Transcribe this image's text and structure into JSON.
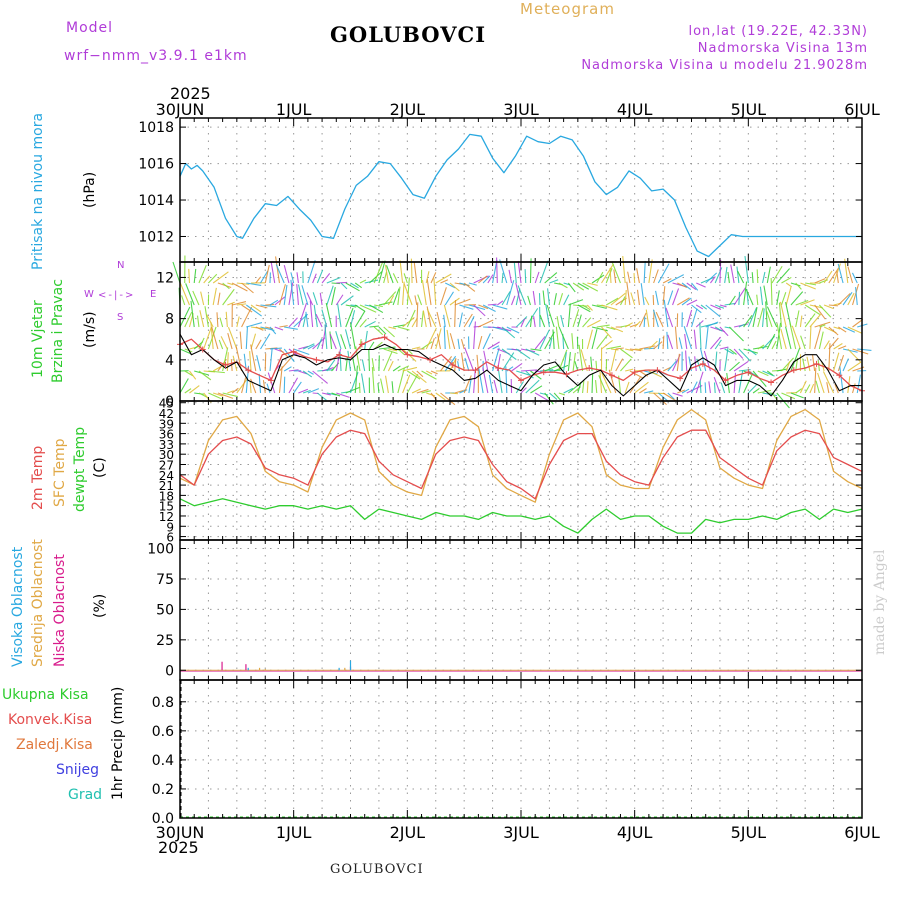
{
  "header": {
    "model_label": "Model",
    "model_name": "wrf−nmm_v3.9.1 e1km",
    "meteogram_label": "Meteogram",
    "station": "GOLUBOVCI",
    "lonlat": "lon,lat (19.22E, 42.33N)",
    "elevation": "Nadmorska Visina 13m",
    "model_elevation": "Nadmorska Visina u modelu 21.9028m"
  },
  "time_axis": {
    "year": "2025",
    "labels": [
      "30JUN",
      "1JUL",
      "2JUL",
      "3JUL",
      "4JUL",
      "5JUL",
      "6JUL"
    ]
  },
  "footer": {
    "station": "GOLUBOVCI",
    "watermark": "made by Angel"
  },
  "colors": {
    "pressure": "#29a8e0",
    "temp2m": "#e44d4d",
    "sfc_temp": "#e0a845",
    "dewpoint": "#2ecc2e",
    "wind_speed": "#e44d4d",
    "wind_gust": "#000000",
    "cloud_high": "#29a8e0",
    "cloud_mid": "#e0a845",
    "cloud_low": "#d81b8c",
    "rain_total": "#2ecc2e",
    "rain_conv": "#e44d4d",
    "freezing": "#e0783c",
    "snow": "#4040e0",
    "graupel": "#20c0b0",
    "wind_dir": "#b03cd8"
  },
  "chart_data": [
    {
      "type": "line",
      "panel": "pressure",
      "ylabel_name": "Pritisak na nivou mora",
      "ylabel_unit": "(hPa)",
      "ylim": [
        1010.6,
        1018.5
      ],
      "yticks": [
        1012,
        1014,
        1016,
        1018
      ],
      "grid": true,
      "x_days": [
        0,
        0.05,
        0.1,
        0.15,
        0.2,
        0.3,
        0.4,
        0.5,
        0.55,
        0.65,
        0.75,
        0.85,
        0.95,
        1.05,
        1.15,
        1.25,
        1.35,
        1.45,
        1.55,
        1.65,
        1.75,
        1.85,
        1.95,
        2.05,
        2.15,
        2.25,
        2.35,
        2.45,
        2.55,
        2.65,
        2.75,
        2.85,
        2.95,
        3.05,
        3.15,
        3.25,
        3.35,
        3.45,
        3.55,
        3.65,
        3.75,
        3.85,
        3.95,
        4.05,
        4.15,
        4.25,
        4.35,
        4.45,
        4.55,
        4.65,
        4.75,
        4.85,
        4.95,
        5.05,
        5.15,
        5.25,
        5.35,
        5.45,
        5.55,
        5.65,
        5.75,
        5.85,
        5.95,
        6.0
      ],
      "series": [
        {
          "values": [
            1015.3,
            1016.0,
            1015.7,
            1015.9,
            1015.6,
            1014.7,
            1013.0,
            1012.0,
            1011.9,
            1013.0,
            1013.8,
            1013.7,
            1014.2,
            1013.5,
            1012.9,
            1012.0,
            1011.9,
            1013.5,
            1014.8,
            1015.3,
            1016.1,
            1016.0,
            1015.2,
            1014.3,
            1014.1,
            1015.3,
            1016.2,
            1016.8,
            1017.6,
            1017.5,
            1016.3,
            1015.5,
            1016.4,
            1017.5,
            1017.2,
            1017.1,
            1017.5,
            1017.3,
            1016.4,
            1015.0,
            1014.3,
            1014.7,
            1015.6,
            1015.2,
            1014.5,
            1014.6,
            1014.0,
            1012.5,
            1011.2,
            1010.9,
            1011.5,
            1012.1,
            1012.0,
            1012.0,
            1012.0,
            1012.0,
            1012.0,
            1012.0,
            1012.0,
            1012.0,
            1012.0,
            1012.0,
            1012.0,
            1012.0
          ]
        }
      ]
    },
    {
      "type": "line",
      "panel": "wind",
      "ylabel_name_a": "10m Vjetar",
      "ylabel_name_b": "Brzina i Pravac",
      "ylabel_unit": "(m/s)",
      "compass": [
        "N",
        "W",
        "E",
        "S"
      ],
      "ylim": [
        0,
        13.5
      ],
      "yticks": [
        0,
        4,
        8,
        12
      ],
      "grid": true,
      "x_days": [
        0,
        0.1,
        0.2,
        0.3,
        0.4,
        0.5,
        0.6,
        0.7,
        0.8,
        0.9,
        1.0,
        1.1,
        1.2,
        1.3,
        1.4,
        1.5,
        1.6,
        1.7,
        1.8,
        1.9,
        2.0,
        2.1,
        2.2,
        2.3,
        2.4,
        2.5,
        2.6,
        2.7,
        2.8,
        2.9,
        3.0,
        3.1,
        3.2,
        3.3,
        3.4,
        3.5,
        3.6,
        3.7,
        3.8,
        3.9,
        4.0,
        4.1,
        4.2,
        4.3,
        4.4,
        4.5,
        4.6,
        4.7,
        4.8,
        4.9,
        5.0,
        5.1,
        5.2,
        5.3,
        5.4,
        5.5,
        5.6,
        5.7,
        5.8,
        5.9,
        6.0
      ],
      "series": [
        {
          "values": [
            5.5,
            6.0,
            5.0,
            4.0,
            3.5,
            3.8,
            3.0,
            2.5,
            2.0,
            4.5,
            4.8,
            4.3,
            4.0,
            3.8,
            4.5,
            4.2,
            5.5,
            6.0,
            6.2,
            5.5,
            4.5,
            4.3,
            4.0,
            4.5,
            3.5,
            3.0,
            3.0,
            3.8,
            3.2,
            3.0,
            2.0,
            2.5,
            2.8,
            2.8,
            2.6,
            3.0,
            3.2,
            3.0,
            2.5,
            2.0,
            2.8,
            3.0,
            3.0,
            2.5,
            2.2,
            3.2,
            3.6,
            3.0,
            2.0,
            2.5,
            2.8,
            2.2,
            1.8,
            2.5,
            3.0,
            3.2,
            3.6,
            3.2,
            2.5,
            1.5,
            1.0
          ]
        },
        {
          "values": [
            6.5,
            4.5,
            5.0,
            4.0,
            3.2,
            3.8,
            2.0,
            1.5,
            1.0,
            4.0,
            4.5,
            4.2,
            3.5,
            4.0,
            4.2,
            4.0,
            5.0,
            5.0,
            5.5,
            5.0,
            5.0,
            4.8,
            4.0,
            3.5,
            3.0,
            2.0,
            2.2,
            3.0,
            2.0,
            1.5,
            1.0,
            2.5,
            3.5,
            3.8,
            2.5,
            1.5,
            2.5,
            3.0,
            1.5,
            0.5,
            1.5,
            2.5,
            3.0,
            2.0,
            1.0,
            3.5,
            4.2,
            3.5,
            1.5,
            2.0,
            2.0,
            1.5,
            0.5,
            2.0,
            3.8,
            4.5,
            4.5,
            3.0,
            1.0,
            1.5,
            1.5
          ]
        }
      ]
    },
    {
      "type": "line",
      "panel": "temperature",
      "ylabel_name_a": "2m Temp",
      "ylabel_name_b": "SFC Temp",
      "ylabel_name_c": "dewpt Temp",
      "ylabel_unit": "(C)",
      "ylim": [
        5,
        45.5
      ],
      "yticks": [
        6,
        9,
        12,
        15,
        18,
        21,
        24,
        27,
        30,
        33,
        36,
        39,
        42,
        45
      ],
      "grid": true,
      "x_days": [
        0,
        0.125,
        0.25,
        0.375,
        0.5,
        0.625,
        0.75,
        0.875,
        1.0,
        1.125,
        1.25,
        1.375,
        1.5,
        1.625,
        1.75,
        1.875,
        2.0,
        2.125,
        2.25,
        2.375,
        2.5,
        2.625,
        2.75,
        2.875,
        3.0,
        3.125,
        3.25,
        3.375,
        3.5,
        3.625,
        3.75,
        3.875,
        4.0,
        4.125,
        4.25,
        4.375,
        4.5,
        4.625,
        4.75,
        4.875,
        5.0,
        5.125,
        5.25,
        5.375,
        5.5,
        5.625,
        5.75,
        5.875,
        6.0
      ],
      "series": [
        {
          "values": [
            24,
            21,
            30,
            34,
            35,
            33,
            26,
            24,
            23,
            21,
            30,
            35,
            37,
            36,
            28,
            24,
            22,
            20,
            30,
            34,
            35,
            34,
            27,
            22,
            20,
            17,
            27,
            34,
            36,
            36,
            28,
            24,
            22,
            21,
            29,
            35,
            37,
            37,
            29,
            26,
            23,
            21,
            31,
            35,
            37,
            36,
            29,
            27,
            25
          ]
        },
        {
          "values": [
            23,
            21,
            34,
            40,
            41,
            36,
            25,
            22,
            21,
            19,
            32,
            40,
            42,
            40,
            25,
            21,
            19,
            18,
            32,
            40,
            41,
            38,
            24,
            20,
            18,
            16,
            30,
            40,
            42,
            38,
            24,
            21,
            20,
            20,
            32,
            40,
            43,
            40,
            26,
            23,
            21,
            20,
            34,
            41,
            43,
            40,
            25,
            22,
            20
          ]
        },
        {
          "values": [
            17,
            15,
            16,
            17,
            16,
            15,
            14,
            15,
            15,
            14,
            15,
            14,
            15,
            11,
            14,
            13,
            12,
            11,
            13,
            12,
            12,
            11,
            13,
            12,
            12,
            11,
            12,
            9,
            7,
            11,
            14,
            11,
            12,
            12,
            9,
            7,
            7,
            11,
            10,
            11,
            11,
            12,
            11,
            13,
            14,
            11,
            14,
            13,
            14
          ]
        }
      ]
    },
    {
      "type": "bar",
      "panel": "cloud",
      "ylabel_name_a": "Visoka Oblacnost",
      "ylabel_name_b": "Srednja Oblacnost",
      "ylabel_name_c": "Niska Oblacnost",
      "ylabel_unit": "(%)",
      "ylim": [
        -8,
        107
      ],
      "yticks": [
        0,
        25,
        50,
        75,
        100
      ],
      "grid": true,
      "series": [
        {
          "name_key": "cloud_low",
          "points": [
            [
              0.37,
              7
            ],
            [
              0.58,
              5
            ],
            [
              1.5,
              3
            ]
          ]
        },
        {
          "name_key": "cloud_high",
          "points": [
            [
              0.6,
              2
            ],
            [
              1.4,
              2
            ],
            [
              1.5,
              8
            ]
          ]
        },
        {
          "name_key": "cloud_mid",
          "points": [
            [
              0.7,
              2
            ],
            [
              0.75,
              1
            ],
            [
              1.45,
              2
            ]
          ]
        }
      ]
    },
    {
      "type": "bar",
      "panel": "precip",
      "ylabel_unit": "1hr Precip (mm)",
      "legend": [
        "Ukupna Kisa",
        "Konvek.Kisa",
        "Zaledj.Kisa",
        "Snijeg",
        "Grad"
      ],
      "ylim": [
        0,
        0.95
      ],
      "yticks": [
        0,
        0.2,
        0.4,
        0.6,
        0.8
      ],
      "grid": true,
      "series": []
    }
  ]
}
